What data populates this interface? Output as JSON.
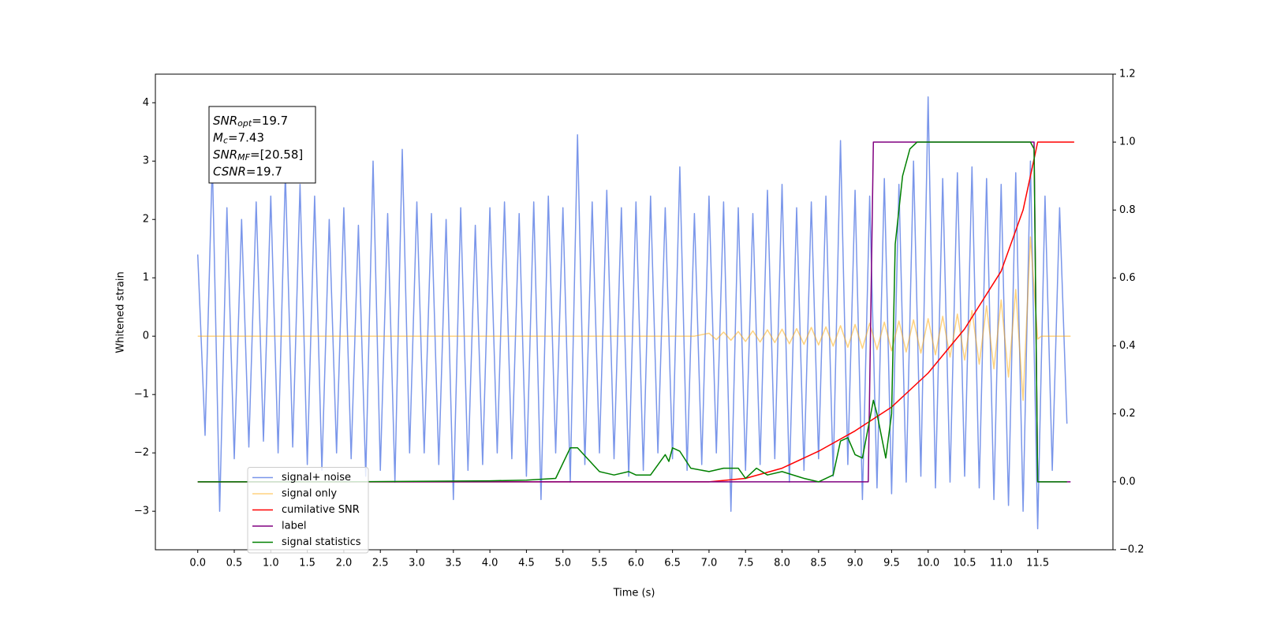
{
  "chart_data": {
    "type": "line",
    "xlabel": "Time (s)",
    "ylabel": "Whitened strain",
    "xlim": [
      -0.58,
      12.53
    ],
    "ylim": [
      -3.66,
      4.49
    ],
    "y2lim": [
      -0.2,
      1.2
    ],
    "xticks": [
      {
        "value": 0,
        "label": "0.0"
      },
      0.5,
      {
        "value": 1,
        "label": "1.0"
      },
      1.5,
      {
        "value": 2,
        "label": "2.0"
      },
      2.5,
      {
        "value": 3,
        "label": "3.0"
      },
      3.5,
      {
        "value": 4,
        "label": "4.0"
      },
      4.5,
      {
        "value": 5,
        "label": "5.0"
      },
      5.5,
      {
        "value": 6,
        "label": "6.0"
      },
      6.5,
      {
        "value": 7,
        "label": "7.0"
      },
      7.5,
      {
        "value": 8,
        "label": "8.0"
      },
      8.5,
      {
        "value": 9,
        "label": "9.0"
      },
      9.5,
      {
        "value": 10,
        "label": "10.0"
      },
      10.5,
      {
        "value": 11,
        "label": "11.0"
      },
      11.5
    ],
    "yticks": [
      {
        "value": -3,
        "label": "−3"
      },
      {
        "value": -2,
        "label": "−2"
      },
      {
        "value": -1,
        "label": "−1"
      },
      0,
      1,
      2,
      3,
      4
    ],
    "y2ticks": [
      {
        "value": -0.2,
        "label": "−0.2"
      },
      {
        "value": 0,
        "label": "0.0"
      },
      0.2,
      0.4,
      0.6,
      0.8,
      {
        "value": 1,
        "label": "1.0"
      },
      1.2
    ],
    "legend_loc": "lower left",
    "annotations": [
      {
        "main": "SNR",
        "sub": "opt",
        "rest": "=19.7"
      },
      {
        "main": "M",
        "sub": "c",
        "rest": "=7.43"
      },
      {
        "main": "SNR",
        "sub": "MF",
        "rest": "=[20.58]"
      },
      {
        "main": "CSNR",
        "rest": "=19.7"
      }
    ],
    "series": [
      {
        "name": "signal+ noise",
        "color": "#4169e1",
        "opacity": 0.7,
        "axis": "y",
        "x": [
          0.0,
          0.1,
          0.2,
          0.3,
          0.4,
          0.5,
          0.6,
          0.7,
          0.8,
          0.9,
          1.0,
          1.1,
          1.2,
          1.3,
          1.4,
          1.5,
          1.6,
          1.7,
          1.8,
          1.9,
          2.0,
          2.1,
          2.2,
          2.3,
          2.4,
          2.5,
          2.6,
          2.7,
          2.8,
          2.9,
          3.0,
          3.1,
          3.2,
          3.3,
          3.4,
          3.5,
          3.6,
          3.7,
          3.8,
          3.9,
          4.0,
          4.1,
          4.2,
          4.3,
          4.4,
          4.5,
          4.6,
          4.7,
          4.8,
          4.9,
          5.0,
          5.1,
          5.2,
          5.3,
          5.4,
          5.5,
          5.6,
          5.7,
          5.8,
          5.9,
          6.0,
          6.1,
          6.2,
          6.3,
          6.4,
          6.5,
          6.6,
          6.7,
          6.8,
          6.9,
          7.0,
          7.1,
          7.2,
          7.3,
          7.4,
          7.5,
          7.6,
          7.7,
          7.8,
          7.9,
          8.0,
          8.1,
          8.2,
          8.3,
          8.4,
          8.5,
          8.6,
          8.7,
          8.8,
          8.9,
          9.0,
          9.1,
          9.2,
          9.3,
          9.4,
          9.5,
          9.6,
          9.7,
          9.8,
          9.9,
          10.0,
          10.1,
          10.2,
          10.3,
          10.4,
          10.5,
          10.6,
          10.7,
          10.8,
          10.9,
          11.0,
          11.1,
          11.2,
          11.3,
          11.4,
          11.5,
          11.6,
          11.7,
          11.8,
          11.9
        ],
        "values": [
          1.4,
          -1.7,
          3.0,
          -3.0,
          2.2,
          -2.1,
          2.0,
          -1.9,
          2.3,
          -1.8,
          2.4,
          -2.0,
          2.8,
          -1.9,
          2.6,
          -2.2,
          2.4,
          -2.3,
          2.0,
          -2.0,
          2.2,
          -2.1,
          1.9,
          -2.4,
          3.0,
          -2.3,
          2.1,
          -2.5,
          3.2,
          -2.0,
          2.3,
          -2.0,
          2.1,
          -2.2,
          2.0,
          -2.8,
          2.2,
          -2.3,
          1.9,
          -2.2,
          2.2,
          -2.0,
          2.3,
          -2.1,
          2.1,
          -2.4,
          2.3,
          -2.8,
          2.4,
          -2.0,
          2.2,
          -2.5,
          3.45,
          -2.2,
          2.3,
          -2.0,
          2.5,
          -2.1,
          2.2,
          -2.4,
          2.3,
          -2.3,
          2.4,
          -2.0,
          2.2,
          -2.1,
          2.9,
          -2.3,
          2.1,
          -2.2,
          2.4,
          -2.0,
          2.3,
          -3.0,
          2.2,
          -2.3,
          2.1,
          -2.2,
          2.5,
          -2.1,
          2.6,
          -2.5,
          2.2,
          -2.3,
          2.3,
          -2.1,
          2.4,
          -2.4,
          3.35,
          -2.2,
          2.5,
          -2.8,
          2.4,
          -2.6,
          2.7,
          -2.7,
          2.6,
          -2.5,
          3.0,
          -2.4,
          4.1,
          -2.6,
          2.7,
          -2.5,
          2.8,
          -2.4,
          2.9,
          -2.6,
          2.7,
          -2.8,
          2.6,
          -2.9,
          2.8,
          -3.0,
          3.0,
          -3.3,
          2.4,
          -2.3,
          2.2,
          -1.5
        ]
      },
      {
        "name": "signal only",
        "color": "#ffa500",
        "opacity": 0.5,
        "axis": "y",
        "x": [
          0.0,
          6.8,
          7.0,
          7.1,
          7.2,
          7.3,
          7.4,
          7.5,
          7.6,
          7.7,
          7.8,
          7.9,
          8.0,
          8.1,
          8.2,
          8.3,
          8.4,
          8.5,
          8.6,
          8.7,
          8.8,
          8.9,
          9.0,
          9.1,
          9.2,
          9.3,
          9.4,
          9.5,
          9.6,
          9.7,
          9.8,
          9.9,
          10.0,
          10.1,
          10.2,
          10.3,
          10.4,
          10.5,
          10.6,
          10.7,
          10.8,
          10.9,
          11.0,
          11.1,
          11.2,
          11.3,
          11.4,
          11.5,
          11.55,
          11.95
        ],
        "values": [
          0,
          0,
          0.05,
          -0.06,
          0.07,
          -0.07,
          0.08,
          -0.09,
          0.09,
          -0.1,
          0.11,
          -0.11,
          0.12,
          -0.13,
          0.13,
          -0.14,
          0.15,
          -0.15,
          0.16,
          -0.17,
          0.18,
          -0.19,
          0.2,
          -0.21,
          0.22,
          -0.23,
          0.24,
          -0.25,
          0.26,
          -0.27,
          0.28,
          -0.29,
          0.3,
          -0.32,
          0.34,
          -0.36,
          0.38,
          -0.41,
          0.44,
          -0.48,
          0.52,
          -0.56,
          0.62,
          -0.7,
          0.8,
          -1.1,
          1.7,
          -0.05,
          0,
          0
        ]
      },
      {
        "name": "cumilative SNR",
        "color": "#ff0000",
        "opacity": 1,
        "axis": "y2",
        "x": [
          0,
          7.0,
          7.5,
          8.0,
          8.5,
          9.0,
          9.5,
          10.0,
          10.5,
          11.0,
          11.3,
          11.45,
          11.5,
          12.0
        ],
        "values": [
          0,
          0,
          0.01,
          0.04,
          0.09,
          0.15,
          0.22,
          0.32,
          0.45,
          0.62,
          0.8,
          0.95,
          1.0,
          1.0
        ]
      },
      {
        "name": "label",
        "color": "#800080",
        "opacity": 1,
        "axis": "y2",
        "x": [
          0,
          9.18,
          9.25,
          11.45,
          11.5,
          11.95
        ],
        "values": [
          0,
          0,
          1,
          1,
          0,
          0
        ]
      },
      {
        "name": "signal statistics",
        "color": "#008000",
        "opacity": 1,
        "axis": "y2",
        "x": [
          0,
          2,
          4,
          4.5,
          4.9,
          5.1,
          5.2,
          5.5,
          5.7,
          5.9,
          6.0,
          6.2,
          6.3,
          6.4,
          6.45,
          6.5,
          6.6,
          6.75,
          7.0,
          7.2,
          7.4,
          7.5,
          7.65,
          7.8,
          8.0,
          8.3,
          8.5,
          8.7,
          8.8,
          8.9,
          9.0,
          9.1,
          9.25,
          9.3,
          9.42,
          9.5,
          9.55,
          9.65,
          9.75,
          9.85,
          11.4,
          11.45,
          11.5,
          11.9
        ],
        "values": [
          0,
          0,
          0.003,
          0.005,
          0.01,
          0.1,
          0.1,
          0.03,
          0.02,
          0.03,
          0.02,
          0.02,
          0.05,
          0.08,
          0.06,
          0.1,
          0.09,
          0.04,
          0.03,
          0.04,
          0.04,
          0.01,
          0.04,
          0.02,
          0.03,
          0.01,
          0,
          0.02,
          0.12,
          0.13,
          0.08,
          0.07,
          0.24,
          0.2,
          0.07,
          0.2,
          0.7,
          0.9,
          0.98,
          1.0,
          1.0,
          0.98,
          0,
          0
        ]
      }
    ]
  }
}
